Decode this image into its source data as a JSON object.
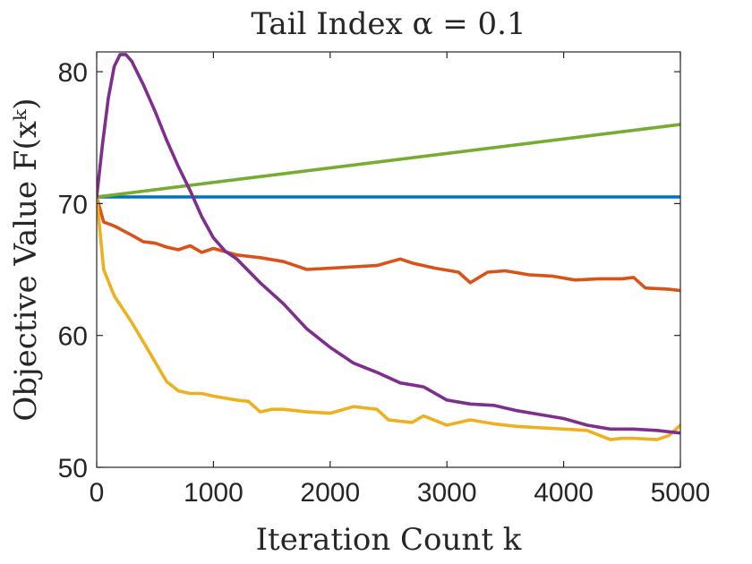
{
  "chart_data": {
    "type": "line",
    "title": "Tail Index α = 0.1",
    "xlabel": "Iteration Count k",
    "ylabel": "Objective Value F(xᵏ)",
    "xlim": [
      0,
      5000
    ],
    "ylim": [
      50,
      81.5
    ],
    "xticks": [
      "0",
      "1000",
      "2000",
      "3000",
      "4000",
      "5000"
    ],
    "yticks": [
      "50",
      "60",
      "70",
      "80"
    ],
    "grid": false,
    "series": [
      {
        "name": "blue",
        "color": "#0072BD",
        "x": [
          0,
          5000
        ],
        "y": [
          70.5,
          70.5
        ]
      },
      {
        "name": "green",
        "color": "#77AC30",
        "x": [
          0,
          5000
        ],
        "y": [
          70.5,
          76.0
        ]
      },
      {
        "name": "orange",
        "color": "#D95319",
        "x": [
          0,
          60,
          150,
          300,
          400,
          500,
          600,
          700,
          800,
          900,
          1000,
          1200,
          1400,
          1600,
          1700,
          1800,
          2000,
          2200,
          2400,
          2600,
          2700,
          2900,
          3100,
          3200,
          3350,
          3500,
          3700,
          3900,
          4100,
          4300,
          4500,
          4600,
          4700,
          4900,
          5000
        ],
        "y": [
          70.5,
          68.6,
          68.3,
          67.6,
          67.1,
          67.0,
          66.7,
          66.5,
          66.8,
          66.3,
          66.6,
          66.1,
          65.9,
          65.6,
          65.3,
          65.0,
          65.1,
          65.2,
          65.3,
          65.8,
          65.5,
          65.1,
          64.8,
          64.0,
          64.8,
          64.9,
          64.6,
          64.5,
          64.2,
          64.3,
          64.3,
          64.4,
          63.6,
          63.5,
          63.4
        ]
      },
      {
        "name": "yellow",
        "color": "#EDB120",
        "x": [
          0,
          60,
          150,
          300,
          400,
          500,
          600,
          700,
          800,
          900,
          1000,
          1200,
          1300,
          1400,
          1500,
          1600,
          1800,
          2000,
          2200,
          2400,
          2500,
          2700,
          2800,
          3000,
          3200,
          3400,
          3600,
          3800,
          4000,
          4200,
          4400,
          4500,
          4600,
          4800,
          4900,
          5000
        ],
        "y": [
          70.5,
          65.0,
          63.0,
          61.0,
          59.5,
          58.0,
          56.5,
          55.8,
          55.6,
          55.6,
          55.4,
          55.1,
          55.0,
          54.2,
          54.4,
          54.4,
          54.2,
          54.1,
          54.6,
          54.4,
          53.6,
          53.4,
          53.9,
          53.2,
          53.6,
          53.3,
          53.1,
          53.0,
          52.9,
          52.8,
          52.1,
          52.2,
          52.2,
          52.1,
          52.4,
          53.2
        ]
      },
      {
        "name": "purple",
        "color": "#7E2F8E",
        "x": [
          0,
          50,
          100,
          150,
          200,
          250,
          300,
          400,
          500,
          600,
          700,
          800,
          900,
          1000,
          1100,
          1200,
          1400,
          1600,
          1800,
          2000,
          2200,
          2400,
          2600,
          2800,
          3000,
          3200,
          3400,
          3600,
          3800,
          4000,
          4200,
          4400,
          4600,
          4800,
          5000
        ],
        "y": [
          70.5,
          74.5,
          78.0,
          80.4,
          81.3,
          81.3,
          80.8,
          79.0,
          77.0,
          74.8,
          72.8,
          71.0,
          69.0,
          67.4,
          66.4,
          65.8,
          64.0,
          62.4,
          60.5,
          59.1,
          57.9,
          57.2,
          56.4,
          56.1,
          55.1,
          54.8,
          54.7,
          54.3,
          54.0,
          53.7,
          53.2,
          52.9,
          52.9,
          52.8,
          52.6
        ]
      }
    ]
  }
}
